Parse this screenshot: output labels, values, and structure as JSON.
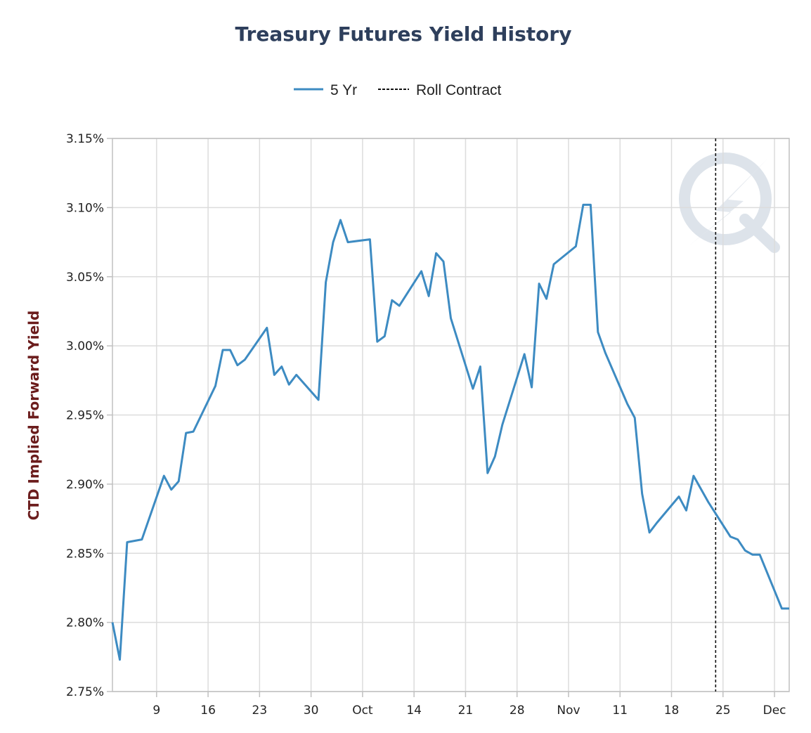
{
  "chart_data": {
    "type": "line",
    "title": "Treasury Futures Yield History",
    "ylabel": "CTD Implied Forward Yield",
    "xlabel": "",
    "ylim": [
      2.75,
      3.15
    ],
    "y_ticks": [
      "2.75%",
      "2.80%",
      "2.85%",
      "2.90%",
      "2.95%",
      "3.00%",
      "3.05%",
      "3.10%",
      "3.15%"
    ],
    "x_range": [
      "2018-09-03",
      "2018-12-04"
    ],
    "x_ticks": [
      {
        "date": "2018-09-09",
        "label": "9"
      },
      {
        "date": "2018-09-16",
        "label": "16"
      },
      {
        "date": "2018-09-23",
        "label": "23"
      },
      {
        "date": "2018-09-30",
        "label": "30"
      },
      {
        "date": "2018-10-07",
        "label": "Oct"
      },
      {
        "date": "2018-10-14",
        "label": "14"
      },
      {
        "date": "2018-10-21",
        "label": "21"
      },
      {
        "date": "2018-10-28",
        "label": "28"
      },
      {
        "date": "2018-11-04",
        "label": "Nov"
      },
      {
        "date": "2018-11-11",
        "label": "11"
      },
      {
        "date": "2018-11-18",
        "label": "18"
      },
      {
        "date": "2018-11-25",
        "label": "25"
      },
      {
        "date": "2018-12-02",
        "label": "Dec"
      }
    ],
    "grid": true,
    "legend_position": "top-center",
    "legend": [
      {
        "label": "5 Yr",
        "style": "solid",
        "color": "#3d8bc2"
      },
      {
        "label": "Roll Contract",
        "style": "dashed",
        "color": "#111111"
      }
    ],
    "series": [
      {
        "name": "5 Yr",
        "color": "#3d8bc2",
        "x": [
          "2018-09-03",
          "2018-09-04",
          "2018-09-05",
          "2018-09-07",
          "2018-09-10",
          "2018-09-11",
          "2018-09-12",
          "2018-09-13",
          "2018-09-14",
          "2018-09-17",
          "2018-09-18",
          "2018-09-19",
          "2018-09-20",
          "2018-09-21",
          "2018-09-24",
          "2018-09-25",
          "2018-09-26",
          "2018-09-27",
          "2018-09-28",
          "2018-10-01",
          "2018-10-02",
          "2018-10-03",
          "2018-10-04",
          "2018-10-05",
          "2018-10-08",
          "2018-10-09",
          "2018-10-10",
          "2018-10-11",
          "2018-10-12",
          "2018-10-15",
          "2018-10-16",
          "2018-10-17",
          "2018-10-18",
          "2018-10-19",
          "2018-10-22",
          "2018-10-23",
          "2018-10-24",
          "2018-10-25",
          "2018-10-26",
          "2018-10-29",
          "2018-10-30",
          "2018-10-31",
          "2018-11-01",
          "2018-11-02",
          "2018-11-05",
          "2018-11-06",
          "2018-11-07",
          "2018-11-08",
          "2018-11-09",
          "2018-11-12",
          "2018-11-13",
          "2018-11-14",
          "2018-11-15",
          "2018-11-16",
          "2018-11-19",
          "2018-11-20",
          "2018-11-21",
          "2018-11-23",
          "2018-11-26",
          "2018-11-27",
          "2018-11-28",
          "2018-11-29",
          "2018-11-30",
          "2018-12-03",
          "2018-12-04"
        ],
        "values": [
          2.8,
          2.773,
          2.858,
          2.86,
          2.906,
          2.896,
          2.902,
          2.937,
          2.938,
          2.971,
          2.997,
          2.997,
          2.986,
          2.99,
          3.013,
          2.979,
          2.985,
          2.972,
          2.979,
          2.961,
          3.046,
          3.075,
          3.091,
          3.075,
          3.077,
          3.003,
          3.007,
          3.033,
          3.029,
          3.054,
          3.036,
          3.067,
          3.061,
          3.02,
          2.969,
          2.985,
          2.908,
          2.92,
          2.943,
          2.994,
          2.97,
          3.045,
          3.034,
          3.059,
          3.072,
          3.102,
          3.102,
          3.01,
          2.995,
          2.958,
          2.948,
          2.893,
          2.865,
          2.872,
          2.891,
          2.881,
          2.906,
          2.887,
          2.862,
          2.86,
          2.852,
          2.849,
          2.849,
          2.81,
          2.81
        ]
      }
    ],
    "roll_contract_date": "2018-11-24"
  }
}
